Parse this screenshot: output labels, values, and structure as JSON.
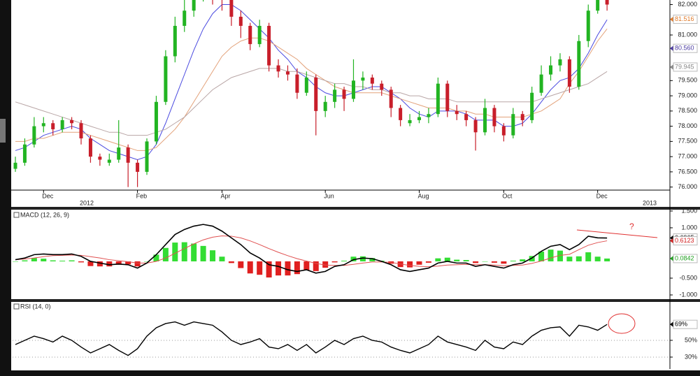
{
  "chart_data": [
    {
      "type": "candlestick",
      "categories": [
        null,
        null,
        null,
        "Dec",
        null,
        null,
        null,
        null,
        null,
        null,
        null,
        null,
        null,
        "Feb",
        null,
        null,
        null,
        null,
        null,
        null,
        null,
        null,
        "Apr",
        null,
        null,
        null,
        null,
        null,
        null,
        null,
        null,
        null,
        null,
        "Jun",
        null,
        null,
        null,
        null,
        null,
        null,
        null,
        null,
        null,
        "Aug",
        null,
        null,
        null,
        null,
        null,
        null,
        null,
        null,
        "Oct",
        null,
        null,
        null,
        null,
        null,
        null,
        null,
        null,
        null,
        "Dec",
        null
      ],
      "year_labels": [
        "2012",
        "2013"
      ],
      "open": [
        76.6,
        76.8,
        77.4,
        78.0,
        78.1,
        77.9,
        78.2,
        78.1,
        77.6,
        77.0,
        76.8,
        76.9,
        77.3,
        76.8,
        76.5,
        77.5,
        78.8,
        80.3,
        81.3,
        81.8,
        82.4,
        82.5,
        82.3,
        82.2,
        81.6,
        81.3,
        80.7,
        81.3,
        80.0,
        79.8,
        79.7,
        79.1,
        79.6,
        78.5,
        78.8,
        79.2,
        78.9,
        79.5,
        79.6,
        79.4,
        79.2,
        78.6,
        78.1,
        78.2,
        78.3,
        78.4,
        79.4,
        78.5,
        78.4,
        78.2,
        77.8,
        78.6,
        78.0,
        77.7,
        78.4,
        78.2,
        79.1,
        79.7,
        80.0,
        80.2,
        79.3,
        80.8,
        81.8,
        82.2
      ],
      "high": [
        77.0,
        77.6,
        78.3,
        78.3,
        78.2,
        78.3,
        78.3,
        78.2,
        77.7,
        77.1,
        77.1,
        78.2,
        77.4,
        76.9,
        77.6,
        79.0,
        80.5,
        81.6,
        82.2,
        82.6,
        82.8,
        82.7,
        82.5,
        82.3,
        81.8,
        81.4,
        81.5,
        81.4,
        80.2,
        80.0,
        79.9,
        79.8,
        79.7,
        79.0,
        79.4,
        79.3,
        80.2,
        79.8,
        79.7,
        79.5,
        79.3,
        78.7,
        78.4,
        78.5,
        78.6,
        79.6,
        79.5,
        78.7,
        78.5,
        78.3,
        78.9,
        78.7,
        78.1,
        78.6,
        78.5,
        79.3,
        80.0,
        80.3,
        80.4,
        80.3,
        81.0,
        82.0,
        82.4,
        82.3
      ],
      "low": [
        76.5,
        76.7,
        77.3,
        77.8,
        77.7,
        77.8,
        77.9,
        77.4,
        76.8,
        76.7,
        76.7,
        76.8,
        76.0,
        76.0,
        76.4,
        77.4,
        78.7,
        80.1,
        81.1,
        81.6,
        82.1,
        82.0,
        81.8,
        81.3,
        80.9,
        80.5,
        80.6,
        79.8,
        79.6,
        79.5,
        78.9,
        79.0,
        77.7,
        78.3,
        78.6,
        78.5,
        78.8,
        79.2,
        79.2,
        79.0,
        78.3,
        78.0,
        78.0,
        78.1,
        78.1,
        78.3,
        78.3,
        78.2,
        78.0,
        77.2,
        77.7,
        77.8,
        77.5,
        77.6,
        78.0,
        78.1,
        79.0,
        79.5,
        79.8,
        79.1,
        79.2,
        80.6,
        81.7,
        81.8
      ],
      "close": [
        76.8,
        77.4,
        78.0,
        78.1,
        77.9,
        78.2,
        78.1,
        77.6,
        77.0,
        76.9,
        76.9,
        77.3,
        76.8,
        76.5,
        77.5,
        78.8,
        80.3,
        81.3,
        81.8,
        82.4,
        82.5,
        82.3,
        82.2,
        81.6,
        81.3,
        80.7,
        81.3,
        80.0,
        79.8,
        79.7,
        79.1,
        79.6,
        78.5,
        78.8,
        79.2,
        78.9,
        79.5,
        79.6,
        79.4,
        79.2,
        78.6,
        78.2,
        78.2,
        78.3,
        78.4,
        79.4,
        78.5,
        78.4,
        78.2,
        77.8,
        78.6,
        78.0,
        77.7,
        78.4,
        78.2,
        79.1,
        79.7,
        80.0,
        80.2,
        79.3,
        80.8,
        81.8,
        82.2,
        82.0
      ],
      "up_color": "#22b422",
      "down_color": "#c81e2a",
      "overlays": [
        {
          "color": "#4a4ae0",
          "values": [
            77.2,
            77.3,
            77.5,
            77.7,
            77.8,
            77.9,
            78.0,
            77.9,
            77.6,
            77.4,
            77.2,
            77.1,
            77.0,
            76.9,
            77.0,
            77.4,
            78.1,
            78.9,
            79.7,
            80.5,
            81.2,
            81.7,
            82.0,
            82.0,
            81.8,
            81.5,
            81.2,
            80.9,
            80.5,
            80.2,
            79.8,
            79.6,
            79.3,
            79.1,
            79.0,
            79.0,
            79.1,
            79.2,
            79.3,
            79.3,
            79.1,
            78.9,
            78.6,
            78.4,
            78.3,
            78.5,
            78.5,
            78.5,
            78.4,
            78.2,
            78.2,
            78.2,
            78.0,
            78.0,
            78.1,
            78.4,
            78.8,
            79.2,
            79.5,
            79.6,
            79.9,
            80.4,
            81.0,
            81.5
          ]
        },
        {
          "color": "#e3a27a",
          "values": [
            77.5,
            77.5,
            77.6,
            77.6,
            77.7,
            77.8,
            77.8,
            77.8,
            77.7,
            77.6,
            77.5,
            77.4,
            77.3,
            77.2,
            77.2,
            77.3,
            77.6,
            77.9,
            78.3,
            78.8,
            79.3,
            79.8,
            80.3,
            80.6,
            80.8,
            80.9,
            80.9,
            80.8,
            80.6,
            80.4,
            80.2,
            79.9,
            79.7,
            79.5,
            79.3,
            79.2,
            79.1,
            79.1,
            79.1,
            79.1,
            79.0,
            78.9,
            78.8,
            78.7,
            78.6,
            78.6,
            78.6,
            78.5,
            78.5,
            78.4,
            78.4,
            78.3,
            78.3,
            78.3,
            78.3,
            78.4,
            78.5,
            78.7,
            78.9,
            79.4,
            79.8,
            80.3,
            80.8,
            81.2
          ]
        },
        {
          "color": "#b9a6a6",
          "values": [
            78.8,
            78.7,
            78.6,
            78.5,
            78.4,
            78.3,
            78.2,
            78.1,
            78.0,
            77.9,
            77.8,
            77.8,
            77.7,
            77.7,
            77.7,
            77.8,
            77.9,
            78.1,
            78.3,
            78.6,
            78.9,
            79.2,
            79.4,
            79.6,
            79.7,
            79.8,
            79.9,
            79.9,
            79.9,
            79.8,
            79.8,
            79.7,
            79.6,
            79.5,
            79.4,
            79.4,
            79.3,
            79.3,
            79.2,
            79.2,
            79.1,
            79.1,
            79.0,
            79.0,
            78.9,
            78.9,
            78.9,
            78.8,
            78.8,
            78.8,
            78.8,
            78.8,
            78.8,
            78.8,
            78.8,
            78.8,
            78.9,
            79.0,
            79.1,
            79.2,
            79.3,
            79.4,
            79.6,
            79.8
          ]
        }
      ],
      "ylim": [
        75.9,
        82.15
      ],
      "yticks": [
        {
          "value": 82,
          "label": "82.000"
        },
        {
          "value": 81,
          "label": "81.000"
        },
        {
          "value": 79.5,
          "label": "79.500"
        },
        {
          "value": 79,
          "label": "79.000"
        },
        {
          "value": 78.5,
          "label": "78.500"
        },
        {
          "value": 78,
          "label": "78.000"
        },
        {
          "value": 77.5,
          "label": "77.500"
        },
        {
          "value": 77,
          "label": "77.000"
        },
        {
          "value": 76.5,
          "label": "76.500"
        },
        {
          "value": 76,
          "label": "76.000"
        }
      ],
      "markers": [
        {
          "value": 81.516,
          "label": "81.516",
          "color": "#e07a2a"
        },
        {
          "value": 80.56,
          "label": "80.560",
          "color": "#4a3aa0"
        },
        {
          "value": 79.945,
          "label": "79.945",
          "color": "#888888"
        }
      ],
      "grid": false
    },
    {
      "type": "macd",
      "title": "MACD (12, 26, 9)",
      "macd": [
        0.05,
        0.1,
        0.2,
        0.22,
        0.2,
        0.2,
        0.22,
        0.15,
        0.0,
        -0.05,
        -0.1,
        -0.08,
        -0.1,
        -0.2,
        -0.05,
        0.2,
        0.5,
        0.8,
        0.95,
        1.05,
        1.1,
        1.05,
        0.9,
        0.7,
        0.5,
        0.25,
        0.1,
        -0.1,
        -0.15,
        -0.25,
        -0.3,
        -0.25,
        -0.35,
        -0.3,
        -0.15,
        -0.1,
        0.05,
        0.1,
        0.08,
        0.0,
        -0.1,
        -0.25,
        -0.3,
        -0.25,
        -0.2,
        -0.05,
        0.0,
        -0.05,
        -0.05,
        -0.15,
        -0.1,
        -0.15,
        -0.2,
        -0.1,
        -0.05,
        0.1,
        0.3,
        0.45,
        0.5,
        0.35,
        0.5,
        0.75,
        0.7,
        0.6965
      ],
      "signal": [
        0.05,
        0.07,
        0.1,
        0.14,
        0.17,
        0.18,
        0.19,
        0.18,
        0.14,
        0.1,
        0.05,
        0.02,
        -0.01,
        -0.05,
        -0.05,
        0.0,
        0.1,
        0.24,
        0.38,
        0.52,
        0.64,
        0.72,
        0.76,
        0.75,
        0.7,
        0.61,
        0.5,
        0.38,
        0.27,
        0.17,
        0.08,
        0.01,
        -0.06,
        -0.11,
        -0.12,
        -0.12,
        -0.09,
        -0.05,
        -0.02,
        -0.02,
        -0.03,
        -0.08,
        -0.12,
        -0.15,
        -0.16,
        -0.14,
        -0.11,
        -0.1,
        -0.09,
        -0.1,
        -0.1,
        -0.11,
        -0.13,
        -0.12,
        -0.11,
        -0.06,
        0.01,
        0.1,
        0.18,
        0.21,
        0.35,
        0.48,
        0.56,
        0.6123
      ],
      "histogram": [
        0,
        0.03,
        0.1,
        0.08,
        0.03,
        0.02,
        0.03,
        -0.03,
        -0.14,
        -0.15,
        -0.15,
        -0.1,
        -0.09,
        -0.15,
        0,
        0.2,
        0.4,
        0.56,
        0.57,
        0.53,
        0.46,
        0.33,
        0.14,
        -0.05,
        -0.2,
        -0.36,
        -0.4,
        -0.48,
        -0.42,
        -0.42,
        -0.38,
        -0.26,
        -0.29,
        -0.19,
        -0.03,
        0.02,
        0.14,
        0.15,
        0.1,
        0.02,
        -0.07,
        -0.17,
        -0.18,
        -0.1,
        -0.04,
        0.09,
        0.11,
        0.05,
        0.04,
        -0.05,
        0,
        -0.04,
        -0.07,
        0.02,
        0.06,
        0.16,
        0.29,
        0.35,
        0.32,
        0.14,
        0.15,
        0.27,
        0.14,
        0.0842
      ],
      "macd_color": "#000000",
      "signal_color": "#e05050",
      "up_color": "#33dd33",
      "down_color": "#e02020",
      "annotation": "?",
      "ylim": [
        -1.125,
        1.54
      ],
      "yticks": [
        {
          "value": 1.5,
          "label": "1.500"
        },
        {
          "value": 1,
          "label": "1.000"
        },
        {
          "value": -0.5,
          "label": "-0.500"
        },
        {
          "value": -1,
          "label": "-1.000"
        }
      ],
      "markers": [
        {
          "value": 0.6965,
          "label": "0.6965",
          "color": "#000000"
        },
        {
          "value": 0.6123,
          "label": "0.6123",
          "color": "#d02020"
        },
        {
          "value": 0.0842,
          "label": "0.0842",
          "color": "#20a020"
        }
      ],
      "grid": false
    },
    {
      "type": "line",
      "title": "RSI (14, 0)",
      "values": [
        45,
        50,
        55,
        52,
        48,
        55,
        50,
        42,
        35,
        40,
        45,
        38,
        32,
        40,
        55,
        65,
        70,
        72,
        68,
        72,
        70,
        68,
        60,
        50,
        45,
        48,
        52,
        42,
        40,
        45,
        38,
        45,
        35,
        42,
        50,
        45,
        52,
        55,
        50,
        48,
        42,
        38,
        35,
        40,
        45,
        55,
        48,
        45,
        42,
        38,
        50,
        42,
        40,
        48,
        45,
        55,
        62,
        65,
        66,
        55,
        68,
        66,
        62,
        69
      ],
      "color": "#000000",
      "ylim": [
        18.3,
        95.8
      ],
      "yticks": [
        {
          "value": 50,
          "label": "50%"
        },
        {
          "value": 30,
          "label": "30%"
        }
      ],
      "markers": [
        {
          "value": 69,
          "label": "69%",
          "color": "#000000"
        }
      ],
      "grid": true
    }
  ]
}
